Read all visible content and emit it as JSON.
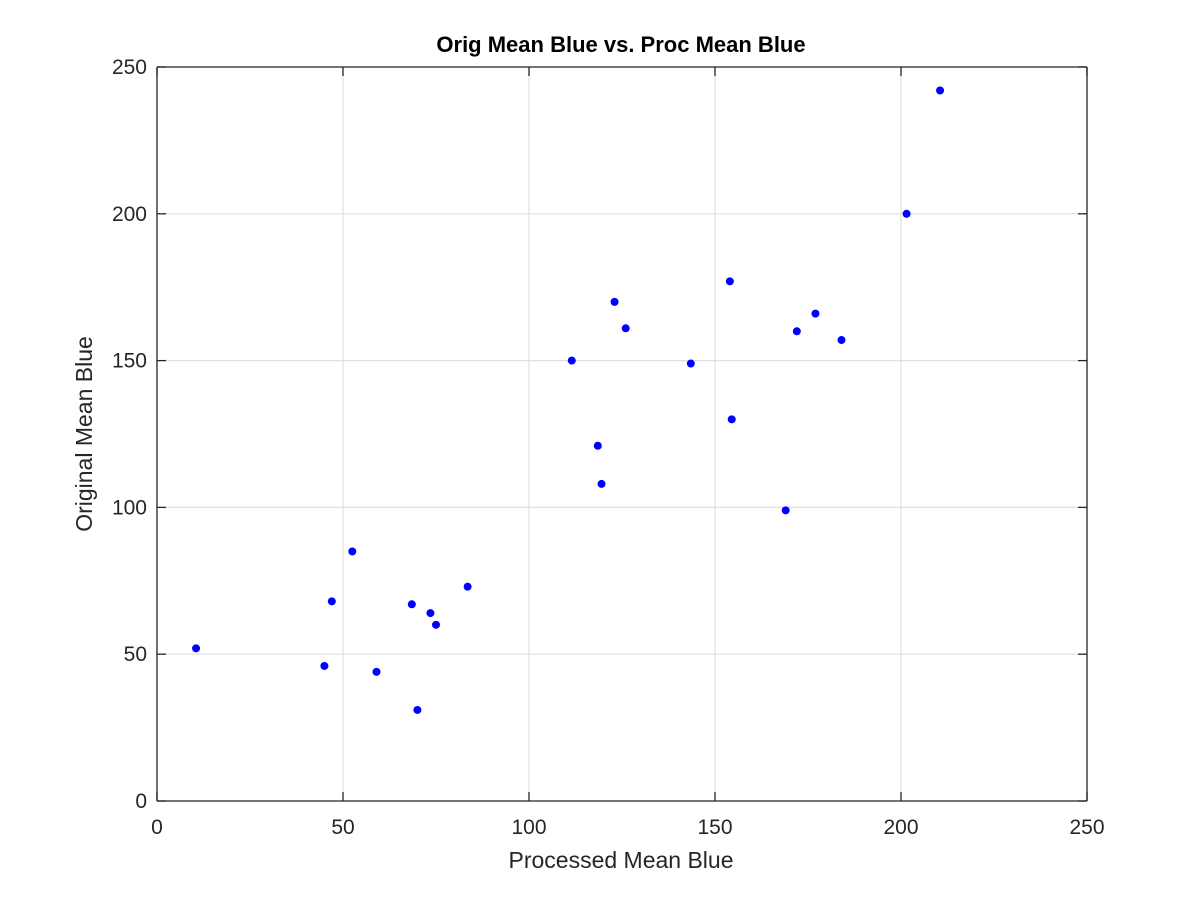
{
  "chart_data": {
    "type": "scatter",
    "title": "Orig Mean Blue vs. Proc Mean Blue",
    "xlabel": "Processed Mean Blue",
    "ylabel": "Original Mean Blue",
    "xlim": [
      0,
      250
    ],
    "ylim": [
      0,
      250
    ],
    "xticks": [
      "0",
      "50",
      "100",
      "150",
      "200",
      "250"
    ],
    "yticks": [
      "0",
      "50",
      "100",
      "150",
      "200",
      "250"
    ],
    "grid": true,
    "marker_color": "#0000ff",
    "points": [
      {
        "x": 10.5,
        "y": 52
      },
      {
        "x": 45,
        "y": 46
      },
      {
        "x": 47,
        "y": 68
      },
      {
        "x": 52.5,
        "y": 85
      },
      {
        "x": 59,
        "y": 44
      },
      {
        "x": 68.5,
        "y": 67
      },
      {
        "x": 70,
        "y": 31
      },
      {
        "x": 73.5,
        "y": 64
      },
      {
        "x": 75,
        "y": 60
      },
      {
        "x": 83.5,
        "y": 73
      },
      {
        "x": 111.5,
        "y": 150
      },
      {
        "x": 118.5,
        "y": 121
      },
      {
        "x": 119.5,
        "y": 108
      },
      {
        "x": 123,
        "y": 170
      },
      {
        "x": 126,
        "y": 161
      },
      {
        "x": 143.5,
        "y": 149
      },
      {
        "x": 154,
        "y": 177
      },
      {
        "x": 154.5,
        "y": 130
      },
      {
        "x": 169,
        "y": 99
      },
      {
        "x": 172,
        "y": 160
      },
      {
        "x": 177,
        "y": 166
      },
      {
        "x": 184,
        "y": 157
      },
      {
        "x": 201.5,
        "y": 200
      },
      {
        "x": 210.5,
        "y": 242
      }
    ]
  }
}
